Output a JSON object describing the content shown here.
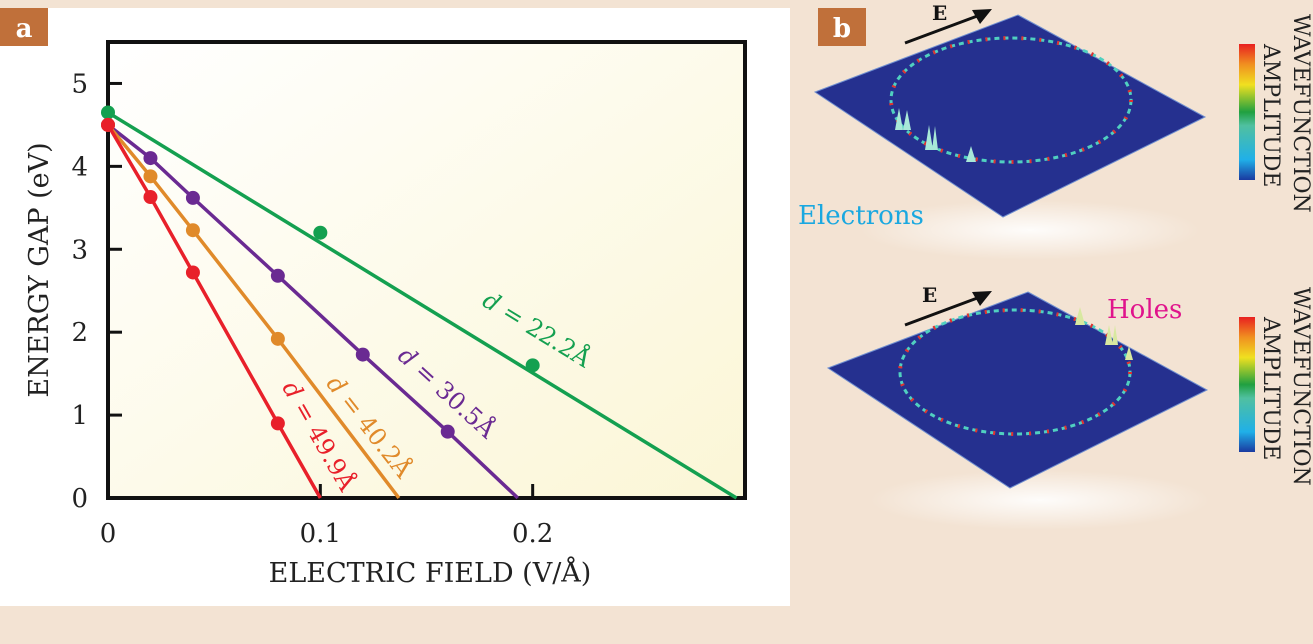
{
  "panel_a_label": "a",
  "panel_b_label": "b",
  "chart_data": {
    "type": "line",
    "xlabel": "ELECTRIC FIELD (V/Å)",
    "ylabel": "ENERGY GAP (eV)",
    "xlim": [
      0,
      0.3
    ],
    "ylim": [
      0,
      5.5
    ],
    "xticks": [
      {
        "v": 0,
        "label": "0"
      },
      {
        "v": 0.1,
        "label": "0.1"
      },
      {
        "v": 0.2,
        "label": "0.2"
      }
    ],
    "yticks": [
      {
        "v": 0,
        "label": "0"
      },
      {
        "v": 1,
        "label": "1"
      },
      {
        "v": 2,
        "label": "2"
      },
      {
        "v": 3,
        "label": "3"
      },
      {
        "v": 4,
        "label": "4"
      },
      {
        "v": 5,
        "label": "5"
      }
    ],
    "series": [
      {
        "name": "d = 22.2Å",
        "italic": "d",
        "rest": " = 22.2Å",
        "color": "#14a050",
        "points": [
          [
            0,
            4.65
          ],
          [
            0.1,
            3.2
          ],
          [
            0.2,
            1.6
          ]
        ],
        "line": [
          [
            0,
            4.65
          ],
          [
            0.296,
            0
          ]
        ],
        "label_at": [
          0.2,
          1.95
        ]
      },
      {
        "name": "d = 30.5Å",
        "italic": "d",
        "rest": " = 30.5Å",
        "color": "#6a2a92",
        "points": [
          [
            0,
            4.5
          ],
          [
            0.02,
            4.1
          ],
          [
            0.04,
            3.62
          ],
          [
            0.08,
            2.68
          ],
          [
            0.12,
            1.73
          ],
          [
            0.16,
            0.8
          ]
        ],
        "line": [
          [
            0,
            4.5
          ],
          [
            0.02,
            4.1
          ],
          [
            0.04,
            3.62
          ],
          [
            0.08,
            2.68
          ],
          [
            0.12,
            1.73
          ],
          [
            0.16,
            0.8
          ],
          [
            0.193,
            0
          ]
        ],
        "label_at": [
          0.157,
          1.2
        ]
      },
      {
        "name": "d = 40.2Å",
        "italic": "d",
        "rest": " = 40.2Å",
        "color": "#e08a2a",
        "points": [
          [
            0,
            4.5
          ],
          [
            0.02,
            3.88
          ],
          [
            0.04,
            3.23
          ],
          [
            0.08,
            1.92
          ]
        ],
        "line": [
          [
            0,
            4.5
          ],
          [
            0.02,
            3.88
          ],
          [
            0.04,
            3.23
          ],
          [
            0.08,
            1.92
          ],
          [
            0.137,
            0
          ]
        ],
        "label_at": [
          0.12,
          0.8
        ]
      },
      {
        "name": "d = 49.9Å",
        "italic": "d",
        "rest": " = 49.9Å",
        "color": "#e8202a",
        "points": [
          [
            0,
            4.5
          ],
          [
            0.02,
            3.63
          ],
          [
            0.04,
            2.72
          ],
          [
            0.08,
            0.9
          ]
        ],
        "line": [
          [
            0,
            4.5
          ],
          [
            0.02,
            3.63
          ],
          [
            0.04,
            2.72
          ],
          [
            0.08,
            0.9
          ],
          [
            0.1,
            0
          ]
        ],
        "label_at": [
          0.096,
          0.7
        ]
      }
    ]
  },
  "panel_b": {
    "field_label": "E",
    "electrons_label": "Electrons",
    "holes_label": "Holes",
    "colorbar_title_1": "WAVEFUNCTION",
    "colorbar_title_2": "AMPLITUDE",
    "colors": {
      "electrons": "#1aa8e0",
      "holes": "#e0148c",
      "plate": "#25308f"
    }
  }
}
